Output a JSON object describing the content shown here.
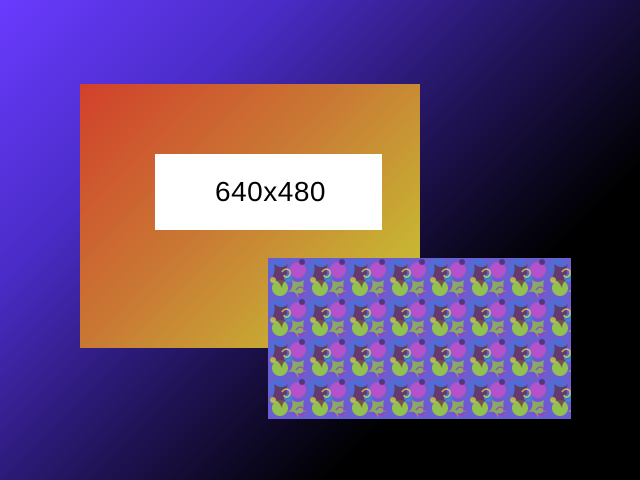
{
  "placeholder_label": "640x480",
  "colors": {
    "background_start": "#6a3bff",
    "background_end": "#000000",
    "card_gradient_start": "#d2402b",
    "card_gradient_end": "#c8c833",
    "label_box": "#ffffff",
    "label_text": "#000000"
  },
  "pattern": {
    "palette": [
      "#7b4fd6",
      "#4d6fd9",
      "#9ad23a",
      "#c64fc9",
      "#6b2a4a",
      "#8c8fe0"
    ]
  }
}
